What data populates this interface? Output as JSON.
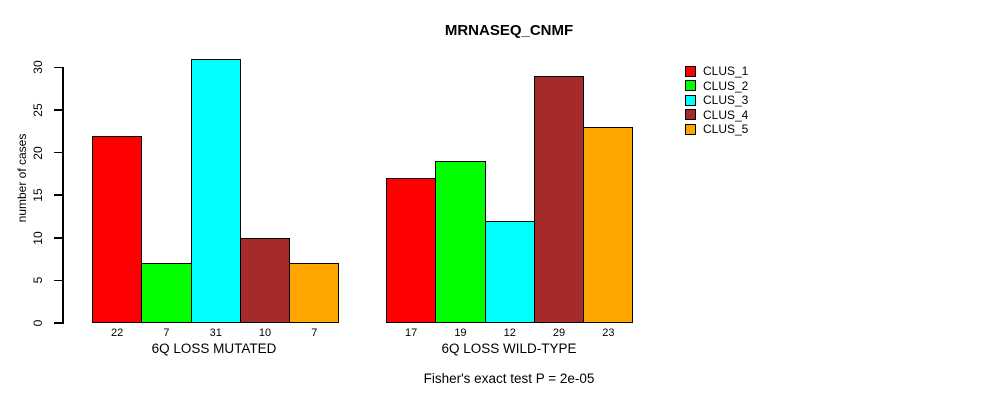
{
  "page": {
    "background": "#ffffff",
    "axis_color": "#000000"
  },
  "chart_data": {
    "type": "bar",
    "title": "MRNASEQ_CNMF",
    "xlabel": "",
    "ylabel": "number of cases",
    "caption": "Fisher's exact test P = 2e-05",
    "yticks": [
      0,
      5,
      10,
      15,
      20,
      25,
      30
    ],
    "ylim": [
      0,
      31
    ],
    "grid": false,
    "legend_position": "right",
    "bar_value_labels_shown": true,
    "categories": [
      "6Q LOSS MUTATED",
      "6Q LOSS WILD-TYPE"
    ],
    "series": [
      {
        "name": "CLUS_1",
        "color": "#FF0000",
        "values": [
          22,
          17
        ]
      },
      {
        "name": "CLUS_2",
        "color": "#00FF00",
        "values": [
          7,
          19
        ]
      },
      {
        "name": "CLUS_3",
        "color": "#00FFFF",
        "values": [
          31,
          12
        ]
      },
      {
        "name": "CLUS_4",
        "color": "#A52A2A",
        "values": [
          10,
          29
        ]
      },
      {
        "name": "CLUS_5",
        "color": "#FFA500",
        "values": [
          7,
          23
        ]
      }
    ]
  }
}
